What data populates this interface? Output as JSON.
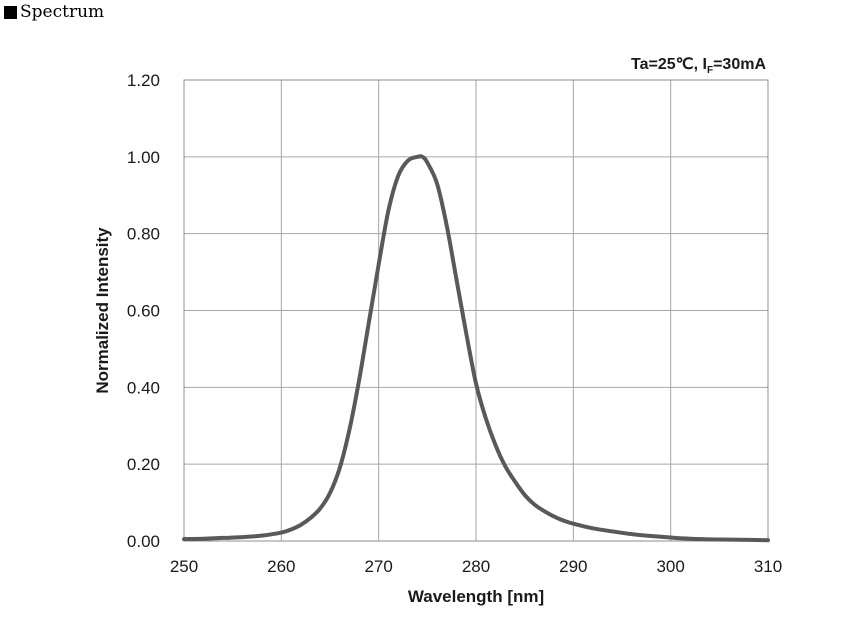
{
  "section_heading": "Spectrum",
  "chart_data": {
    "type": "line",
    "condition_text": {
      "prefix": "Ta=25℃, I",
      "subscript": "F",
      "suffix": "=30mA"
    },
    "xlabel": "Wavelength [nm]",
    "ylabel": "Normalized Intensity",
    "xlim": [
      250,
      310
    ],
    "ylim": [
      0,
      1.2
    ],
    "x_ticks": [
      250,
      260,
      270,
      280,
      290,
      300,
      310
    ],
    "x_tick_labels": [
      "250",
      "260",
      "270",
      "280",
      "290",
      "300",
      "310"
    ],
    "y_ticks": [
      0,
      0.2,
      0.4,
      0.6,
      0.8,
      1.0,
      1.2
    ],
    "y_tick_labels": [
      "0.00",
      "0.20",
      "0.40",
      "0.60",
      "0.80",
      "1.00",
      "1.20"
    ],
    "grid": true,
    "line_color": "#595959",
    "series": [
      {
        "x": [
          250,
          252,
          254,
          256,
          258,
          260,
          261,
          262,
          263,
          264,
          265,
          266,
          267,
          268,
          269,
          270,
          271,
          272,
          273,
          274,
          274.5,
          275,
          276,
          277,
          278,
          279,
          280,
          281,
          282,
          283,
          284,
          285,
          286,
          287,
          288,
          289,
          290,
          292,
          294,
          296,
          298,
          300,
          302,
          305,
          308,
          310
        ],
        "y": [
          0.005,
          0.006,
          0.008,
          0.01,
          0.014,
          0.022,
          0.03,
          0.042,
          0.06,
          0.085,
          0.125,
          0.19,
          0.29,
          0.42,
          0.57,
          0.72,
          0.86,
          0.95,
          0.99,
          1.0,
          1.0,
          0.985,
          0.93,
          0.82,
          0.68,
          0.54,
          0.41,
          0.32,
          0.25,
          0.195,
          0.155,
          0.12,
          0.095,
          0.078,
          0.064,
          0.053,
          0.045,
          0.033,
          0.025,
          0.018,
          0.013,
          0.009,
          0.006,
          0.004,
          0.003,
          0.002
        ]
      }
    ]
  }
}
